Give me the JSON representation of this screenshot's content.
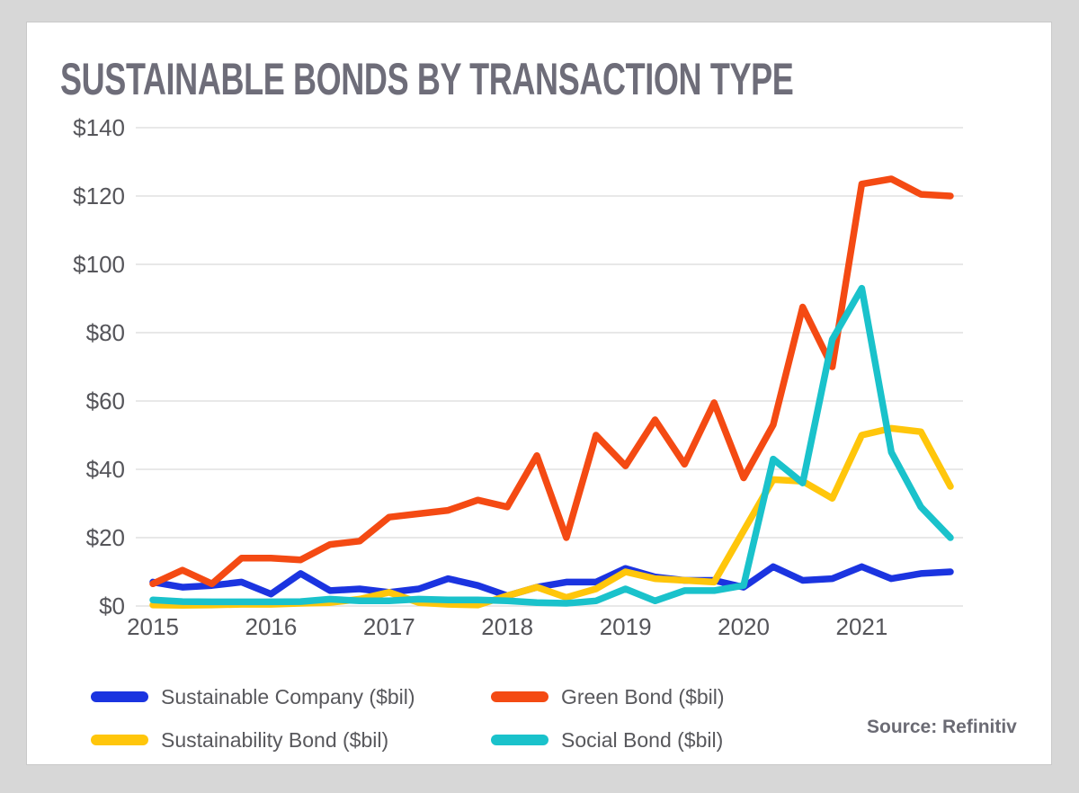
{
  "title": "SUSTAINABLE BONDS BY TRANSACTION TYPE",
  "source": "Source: Refinitiv",
  "chart_data": {
    "type": "line",
    "title": "SUSTAINABLE BONDS BY TRANSACTION TYPE",
    "xlabel": "",
    "ylabel": "",
    "ylim": [
      0,
      140
    ],
    "grid": "horizontal",
    "legend_position": "bottom",
    "x_tick_labels": [
      "2015",
      "2016",
      "2017",
      "2018",
      "2019",
      "2020",
      "2021"
    ],
    "y_tick_values": [
      0,
      20,
      40,
      60,
      80,
      100,
      120,
      140
    ],
    "y_tick_labels": [
      "$0",
      "$20",
      "$40",
      "$60",
      "$80",
      "$100",
      "$120",
      "$140"
    ],
    "x": [
      "2015 Q1",
      "2015 Q2",
      "2015 Q3",
      "2015 Q4",
      "2016 Q1",
      "2016 Q2",
      "2016 Q3",
      "2016 Q4",
      "2017 Q1",
      "2017 Q2",
      "2017 Q3",
      "2017 Q4",
      "2018 Q1",
      "2018 Q2",
      "2018 Q3",
      "2018 Q4",
      "2019 Q1",
      "2019 Q2",
      "2019 Q3",
      "2019 Q4",
      "2020 Q1",
      "2020 Q2",
      "2020 Q3",
      "2020 Q4",
      "2021 Q1",
      "2021 Q2",
      "2021 Q3",
      "2021 Q4"
    ],
    "series": [
      {
        "name": "Sustainable Company ($bil)",
        "color": "#1B34E0",
        "values": [
          7,
          5.5,
          6,
          7,
          3.5,
          9.5,
          4.5,
          5,
          4,
          5,
          8,
          6,
          3,
          5.5,
          7,
          7,
          11,
          8.5,
          7.5,
          7.5,
          5.5,
          11.5,
          7.5,
          8,
          11.5,
          8,
          9.5,
          10
        ]
      },
      {
        "name": "Green Bond ($bil)",
        "color": "#F44A13",
        "values": [
          6.5,
          10.5,
          6.5,
          14,
          14,
          13.5,
          18,
          19,
          26,
          27,
          28,
          31,
          29,
          44,
          20,
          50,
          41,
          54.5,
          41.5,
          59.5,
          37.5,
          53,
          87.5,
          70,
          123.5,
          125,
          120.5,
          120
        ]
      },
      {
        "name": "Sustainability Bond ($bil)",
        "color": "#FFC60B",
        "values": [
          0.3,
          0.2,
          0.3,
          0.5,
          0.5,
          0.8,
          1,
          2,
          4,
          1,
          0.5,
          0.3,
          3,
          5.5,
          2.5,
          5,
          10,
          8,
          7.5,
          7,
          22,
          37,
          36.5,
          31.5,
          50,
          52,
          51,
          35
        ]
      },
      {
        "name": "Social Bond ($bil)",
        "color": "#1AC2CB",
        "values": [
          1.8,
          1.3,
          1.2,
          1.2,
          1.2,
          1.3,
          2,
          1.5,
          1.5,
          2,
          1.8,
          1.8,
          1.5,
          1,
          0.8,
          1.5,
          5,
          1.5,
          4.5,
          4.5,
          6,
          43,
          36,
          78,
          93,
          45,
          29,
          20
        ]
      }
    ]
  }
}
